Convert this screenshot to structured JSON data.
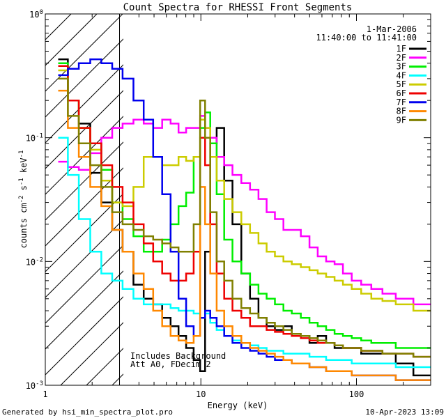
{
  "chart_data": {
    "type": "line",
    "title": "Count Spectra for RHESSI Front Segments",
    "xlabel": "Energy (keV)",
    "ylabel_parts": {
      "a": "counts cm",
      "b": "-2",
      "c": " s",
      "d": "-1",
      "e": " keV",
      "f": "-1"
    },
    "x_scale": "log",
    "y_scale": "log",
    "xlim": [
      1,
      300
    ],
    "ylim": [
      0.001,
      1
    ],
    "x_ticks": [
      {
        "v": 1,
        "label": "1"
      },
      {
        "v": 10,
        "label": "10"
      },
      {
        "v": 100,
        "label": "100"
      }
    ],
    "y_ticks": [
      {
        "v": 0.001,
        "base": "10",
        "exp": "-3"
      },
      {
        "v": 0.01,
        "base": "10",
        "exp": "-2"
      },
      {
        "v": 0.1,
        "base": "10",
        "exp": "-1"
      },
      {
        "v": 1,
        "base": "10",
        "exp": "0"
      }
    ],
    "grid": false,
    "attenuator_cutoff_kev": 3,
    "legend": {
      "placement": "top-right",
      "date": "1-Mar-2006",
      "time_range": "11:40:00 to 11:41:00"
    },
    "annotation_lines": [
      "Includes Background",
      "Att A0, FDecim 2"
    ],
    "series": [
      {
        "name": "1F",
        "color": "#000000",
        "values": [
          0.43,
          0.2,
          0.13,
          0.052,
          0.03,
          0.018,
          0.012,
          0.0065,
          0.005,
          0.0045,
          0.0035,
          0.003,
          0.0025,
          0.002,
          0.0016,
          0.0013,
          0.012,
          0.09,
          0.12,
          0.045,
          0.02,
          0.008,
          0.005,
          0.0035,
          0.003,
          0.0028,
          0.003,
          0.0025,
          0.0025,
          0.0022,
          0.0025,
          0.0022,
          0.002,
          0.002,
          0.002,
          0.0018,
          0.0018,
          0.0018,
          0.0015,
          0.0012
        ]
      },
      {
        "name": "2F",
        "color": "#ff00ff",
        "values": [
          0.064,
          0.058,
          0.055,
          0.075,
          0.1,
          0.12,
          0.13,
          0.14,
          0.13,
          0.12,
          0.14,
          0.13,
          0.11,
          0.12,
          0.12,
          0.15,
          0.12,
          0.1,
          0.07,
          0.06,
          0.05,
          0.043,
          0.038,
          0.032,
          0.025,
          0.022,
          0.018,
          0.018,
          0.016,
          0.013,
          0.011,
          0.01,
          0.0095,
          0.008,
          0.007,
          0.0065,
          0.006,
          0.0055,
          0.005,
          0.0045
        ]
      },
      {
        "name": "3F",
        "color": "#00ee00",
        "values": [
          0.4,
          0.2,
          0.12,
          0.09,
          0.055,
          0.03,
          0.022,
          0.016,
          0.012,
          0.012,
          0.015,
          0.02,
          0.028,
          0.036,
          0.07,
          0.12,
          0.16,
          0.09,
          0.035,
          0.015,
          0.01,
          0.008,
          0.0065,
          0.0055,
          0.005,
          0.0045,
          0.004,
          0.0038,
          0.0035,
          0.0032,
          0.003,
          0.0028,
          0.0026,
          0.0025,
          0.0024,
          0.0023,
          0.0022,
          0.0022,
          0.002,
          0.002
        ]
      },
      {
        "name": "4F",
        "color": "#00ffff",
        "values": [
          0.1,
          0.05,
          0.022,
          0.012,
          0.008,
          0.007,
          0.006,
          0.005,
          0.0045,
          0.0045,
          0.0045,
          0.0042,
          0.004,
          0.004,
          0.0038,
          0.0035,
          0.0038,
          0.0032,
          0.0028,
          0.0025,
          0.0023,
          0.0022,
          0.0021,
          0.002,
          0.0019,
          0.0019,
          0.0018,
          0.0018,
          0.0018,
          0.0017,
          0.0017,
          0.0016,
          0.0016,
          0.0016,
          0.0015,
          0.0015,
          0.0015,
          0.0015,
          0.0014,
          0.0014
        ]
      },
      {
        "name": "5F",
        "color": "#cccc00",
        "values": [
          0.35,
          0.2,
          0.12,
          0.08,
          0.045,
          0.03,
          0.028,
          0.04,
          0.07,
          0.07,
          0.06,
          0.06,
          0.07,
          0.065,
          0.07,
          0.14,
          0.12,
          0.07,
          0.045,
          0.032,
          0.025,
          0.02,
          0.017,
          0.014,
          0.012,
          0.011,
          0.01,
          0.0095,
          0.009,
          0.0085,
          0.008,
          0.0075,
          0.007,
          0.0065,
          0.006,
          0.0055,
          0.005,
          0.0048,
          0.0045,
          0.004
        ]
      },
      {
        "name": "6F",
        "color": "#ee0000",
        "values": [
          0.38,
          0.2,
          0.12,
          0.09,
          0.06,
          0.04,
          0.03,
          0.02,
          0.014,
          0.01,
          0.008,
          0.007,
          0.007,
          0.008,
          0.012,
          0.1,
          0.06,
          0.02,
          0.008,
          0.005,
          0.004,
          0.0035,
          0.003,
          0.003,
          0.0028,
          0.0027,
          0.0026,
          0.0025,
          0.0024,
          0.0023,
          0.0022,
          0.0022,
          0.0021,
          0.002,
          0.002,
          0.0019,
          0.0019,
          0.0018,
          0.0018,
          0.0017
        ]
      },
      {
        "name": "7F",
        "color": "#0000ee",
        "values": [
          0.32,
          0.36,
          0.4,
          0.43,
          0.4,
          0.36,
          0.3,
          0.2,
          0.14,
          0.07,
          0.035,
          0.012,
          0.005,
          0.003,
          0.0025,
          0.0035,
          0.004,
          0.0035,
          0.003,
          0.0025,
          0.0022,
          0.002,
          0.0019,
          0.0018,
          0.0017,
          0.0016,
          0.0016,
          0.0015,
          0.0015,
          0.0014,
          0.0014,
          0.0013,
          0.0013,
          0.0013,
          0.0012,
          0.0012,
          0.0012,
          0.0012,
          0.0011,
          0.0011
        ]
      },
      {
        "name": "8F",
        "color": "#ff8800",
        "values": [
          0.24,
          0.12,
          0.07,
          0.04,
          0.028,
          0.018,
          0.012,
          0.008,
          0.006,
          0.004,
          0.003,
          0.0025,
          0.0023,
          0.0022,
          0.0025,
          0.04,
          0.02,
          0.008,
          0.004,
          0.003,
          0.0025,
          0.0022,
          0.002,
          0.0019,
          0.0018,
          0.0017,
          0.0016,
          0.0015,
          0.0015,
          0.0014,
          0.0014,
          0.0013,
          0.0013,
          0.0013,
          0.0012,
          0.0012,
          0.0012,
          0.0012,
          0.0011,
          0.0011
        ]
      },
      {
        "name": "9F",
        "color": "#808000",
        "values": [
          0.3,
          0.15,
          0.09,
          0.06,
          0.04,
          0.025,
          0.02,
          0.018,
          0.016,
          0.015,
          0.014,
          0.013,
          0.012,
          0.012,
          0.02,
          0.2,
          0.1,
          0.025,
          0.01,
          0.007,
          0.005,
          0.0042,
          0.0038,
          0.0035,
          0.0032,
          0.003,
          0.0028,
          0.0026,
          0.0025,
          0.0024,
          0.0023,
          0.0022,
          0.0021,
          0.002,
          0.002,
          0.0019,
          0.0019,
          0.0018,
          0.0018,
          0.0017
        ]
      }
    ],
    "x": [
      1.3,
      1.5,
      1.8,
      2.1,
      2.5,
      2.9,
      3.4,
      4.0,
      4.6,
      5.3,
      6.0,
      6.8,
      7.6,
      8.5,
      9.5,
      10.3,
      11.0,
      12.0,
      13.3,
      15.0,
      17.0,
      19.5,
      22.0,
      25.0,
      28.0,
      32.0,
      36.0,
      41.0,
      47.0,
      53.0,
      60.0,
      68.0,
      77.0,
      87.0,
      100.0,
      115.0,
      135.0,
      160.0,
      200.0,
      270.0
    ]
  },
  "footer": {
    "left": "Generated by hsi_min_spectra_plot.pro",
    "right": "10-Apr-2023 13:09"
  }
}
